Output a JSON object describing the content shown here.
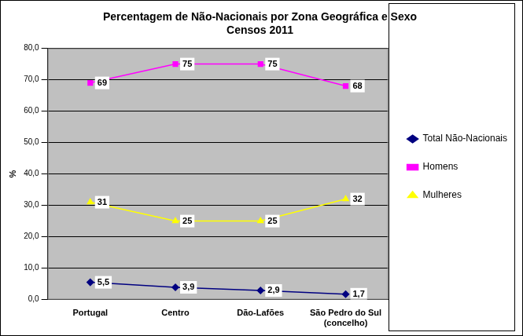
{
  "chart_data": {
    "type": "line",
    "title": "Percentagem de Não-Nacionais por Zona Geográfica e Sexo\nCensos 2011",
    "ylabel": "%",
    "categories": [
      "Portugal",
      "Centro",
      "Dão-Lafões",
      "São Pedro do Sul\n(concelho)"
    ],
    "series": [
      {
        "name": "Total Não-Nacionais",
        "color": "#000080",
        "marker": "diamond",
        "line_style": "solid",
        "values": [
          5.5,
          3.9,
          2.9,
          1.7
        ],
        "value_labels": [
          "5,5",
          "3,9",
          "2,9",
          "1,7"
        ]
      },
      {
        "name": "Homens",
        "color": "#ff00ff",
        "marker": "square",
        "line_style": "solid",
        "values": [
          69,
          75,
          75,
          68
        ]
      },
      {
        "name": "Mulheres",
        "color": "#ffff00",
        "marker": "triangle",
        "line_style": "solid",
        "values": [
          31,
          25,
          25,
          32
        ]
      }
    ],
    "ylim": [
      0,
      80
    ],
    "yticks": [
      {
        "value": 0,
        "label": "0,0"
      },
      {
        "value": 10,
        "label": "10,0"
      },
      {
        "value": 20,
        "label": "20,0"
      },
      {
        "value": 30,
        "label": "30,0"
      },
      {
        "value": 40,
        "label": "40,0"
      },
      {
        "value": 50,
        "label": "50,0"
      },
      {
        "value": 60,
        "label": "60,0"
      },
      {
        "value": 70,
        "label": "70,0"
      },
      {
        "value": 80,
        "label": "80,0"
      }
    ],
    "grid": true,
    "legend": "right",
    "data_labels": true
  }
}
